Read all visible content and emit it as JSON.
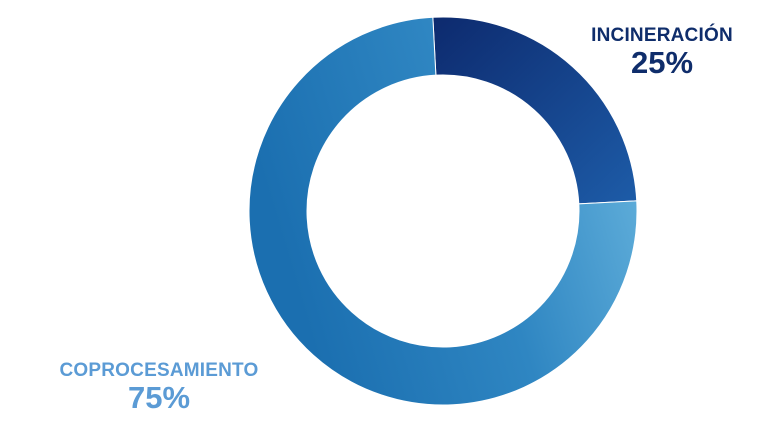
{
  "chart_data": {
    "type": "pie",
    "donut": true,
    "slices": [
      {
        "label": "INCINERACIÓN",
        "percent_label": "25%",
        "value": 25,
        "gradient": [
          "#0d2a6e",
          "#1d5ca8"
        ],
        "label_color": "#0f2d6b"
      },
      {
        "label": "COPROCESAMIENTO",
        "percent_label": "75%",
        "value": 75,
        "gradient": [
          "#6cb8e0",
          "#2f86c2",
          "#1b6fb0"
        ],
        "label_color": "#5b9bd5"
      }
    ]
  }
}
